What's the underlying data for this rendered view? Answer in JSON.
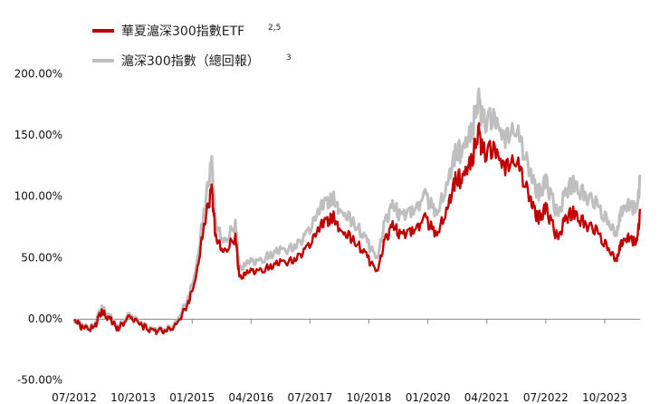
{
  "chart_data": {
    "type": "line",
    "title": "",
    "xlabel": "",
    "ylabel": "",
    "x_ticks": [
      "07/2012",
      "10/2013",
      "01/2015",
      "04/2016",
      "07/2017",
      "10/2018",
      "01/2020",
      "04/2021",
      "07/2022",
      "10/2023"
    ],
    "x_tick_dates": [
      "2012-07",
      "2013-10",
      "2015-01",
      "2016-04",
      "2017-07",
      "2018-10",
      "2020-01",
      "2021-04",
      "2022-07",
      "2023-10"
    ],
    "x_range": [
      "2012-07",
      "2024-07"
    ],
    "y_ticks": [
      "200.00%",
      "150.00%",
      "100.00%",
      "50.00%",
      "0.00%",
      "-50.00%"
    ],
    "y_tick_values": [
      200,
      150,
      100,
      50,
      0,
      -50
    ],
    "ylim": [
      -50,
      200
    ],
    "y_unit": "%",
    "grid": false,
    "legend_position": "top-left",
    "series": [
      {
        "name": "華夏滬深300指數ETF",
        "superscript": "2,5",
        "color": "#c00000",
        "points": [
          [
            "2012-07",
            0
          ],
          [
            "2012-09",
            -5
          ],
          [
            "2012-12",
            -6
          ],
          [
            "2013-02",
            8
          ],
          [
            "2013-04",
            2
          ],
          [
            "2013-06",
            -6
          ],
          [
            "2013-09",
            3
          ],
          [
            "2013-12",
            -3
          ],
          [
            "2014-03",
            -8
          ],
          [
            "2014-06",
            -9
          ],
          [
            "2014-09",
            -4
          ],
          [
            "2014-12",
            15
          ],
          [
            "2015-02",
            35
          ],
          [
            "2015-04",
            78
          ],
          [
            "2015-06",
            110
          ],
          [
            "2015-07",
            70
          ],
          [
            "2015-09",
            55
          ],
          [
            "2015-12",
            70
          ],
          [
            "2016-01",
            35
          ],
          [
            "2016-03",
            40
          ],
          [
            "2016-06",
            40
          ],
          [
            "2016-09",
            45
          ],
          [
            "2016-12",
            48
          ],
          [
            "2017-03",
            50
          ],
          [
            "2017-06",
            60
          ],
          [
            "2017-09",
            75
          ],
          [
            "2017-11",
            82
          ],
          [
            "2018-01",
            88
          ],
          [
            "2018-03",
            72
          ],
          [
            "2018-06",
            68
          ],
          [
            "2018-09",
            55
          ],
          [
            "2018-12",
            40
          ],
          [
            "2019-02",
            65
          ],
          [
            "2019-04",
            80
          ],
          [
            "2019-06",
            70
          ],
          [
            "2019-09",
            75
          ],
          [
            "2019-12",
            85
          ],
          [
            "2020-03",
            72
          ],
          [
            "2020-06",
            90
          ],
          [
            "2020-08",
            120
          ],
          [
            "2020-10",
            118
          ],
          [
            "2020-12",
            135
          ],
          [
            "2021-02",
            160
          ],
          [
            "2021-03",
            140
          ],
          [
            "2021-06",
            142
          ],
          [
            "2021-09",
            130
          ],
          [
            "2021-12",
            132
          ],
          [
            "2022-03",
            100
          ],
          [
            "2022-05",
            85
          ],
          [
            "2022-07",
            95
          ],
          [
            "2022-10",
            68
          ],
          [
            "2022-12",
            85
          ],
          [
            "2023-02",
            92
          ],
          [
            "2023-05",
            80
          ],
          [
            "2023-08",
            75
          ],
          [
            "2023-11",
            58
          ],
          [
            "2024-01",
            50
          ],
          [
            "2024-02",
            62
          ],
          [
            "2024-04",
            70
          ],
          [
            "2024-06",
            63
          ],
          [
            "2024-07",
            90
          ]
        ]
      },
      {
        "name": "滬深300指數（總回報）",
        "superscript": "3",
        "color": "#bfbfbf",
        "points": [
          [
            "2012-07",
            0
          ],
          [
            "2012-09",
            -4
          ],
          [
            "2012-12",
            -5
          ],
          [
            "2013-02",
            11
          ],
          [
            "2013-04",
            4
          ],
          [
            "2013-06",
            -5
          ],
          [
            "2013-09",
            5
          ],
          [
            "2013-12",
            -2
          ],
          [
            "2014-03",
            -7
          ],
          [
            "2014-06",
            -8
          ],
          [
            "2014-09",
            -2
          ],
          [
            "2014-12",
            19
          ],
          [
            "2015-02",
            42
          ],
          [
            "2015-04",
            90
          ],
          [
            "2015-06",
            133
          ],
          [
            "2015-07",
            82
          ],
          [
            "2015-09",
            63
          ],
          [
            "2015-12",
            81
          ],
          [
            "2016-01",
            42
          ],
          [
            "2016-03",
            48
          ],
          [
            "2016-06",
            48
          ],
          [
            "2016-09",
            55
          ],
          [
            "2016-12",
            58
          ],
          [
            "2017-03",
            61
          ],
          [
            "2017-06",
            72
          ],
          [
            "2017-09",
            90
          ],
          [
            "2017-11",
            98
          ],
          [
            "2018-01",
            104
          ],
          [
            "2018-03",
            88
          ],
          [
            "2018-06",
            83
          ],
          [
            "2018-09",
            68
          ],
          [
            "2018-12",
            51
          ],
          [
            "2019-02",
            80
          ],
          [
            "2019-04",
            97
          ],
          [
            "2019-06",
            86
          ],
          [
            "2019-09",
            92
          ],
          [
            "2019-12",
            104
          ],
          [
            "2020-03",
            90
          ],
          [
            "2020-06",
            110
          ],
          [
            "2020-08",
            143
          ],
          [
            "2020-10",
            141
          ],
          [
            "2020-12",
            160
          ],
          [
            "2021-02",
            188
          ],
          [
            "2021-03",
            166
          ],
          [
            "2021-06",
            168
          ],
          [
            "2021-09",
            155
          ],
          [
            "2021-12",
            158
          ],
          [
            "2022-03",
            122
          ],
          [
            "2022-05",
            106
          ],
          [
            "2022-07",
            118
          ],
          [
            "2022-10",
            88
          ],
          [
            "2022-12",
            107
          ],
          [
            "2023-02",
            117
          ],
          [
            "2023-05",
            104
          ],
          [
            "2023-08",
            98
          ],
          [
            "2023-11",
            80
          ],
          [
            "2024-01",
            72
          ],
          [
            "2024-02",
            88
          ],
          [
            "2024-04",
            98
          ],
          [
            "2024-06",
            91
          ],
          [
            "2024-07",
            118
          ]
        ]
      }
    ]
  }
}
